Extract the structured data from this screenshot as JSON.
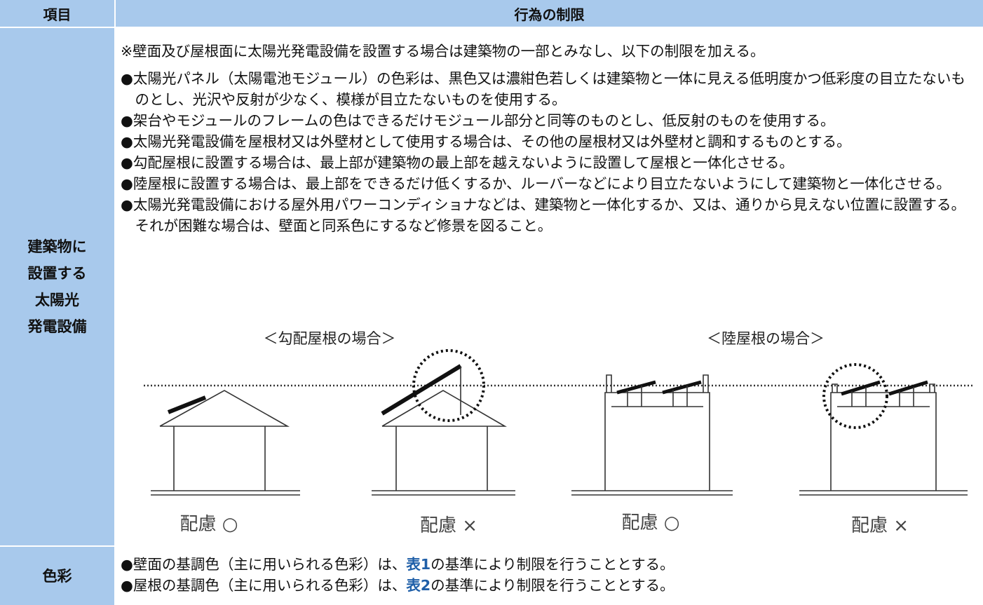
{
  "header": {
    "item": "項目",
    "restriction": "行為の制限"
  },
  "rows": [
    {
      "label_lines": [
        "建築物に",
        "設置する",
        "太陽光",
        "発電設備"
      ],
      "note": "※壁面及び屋根面に太陽光発電設備を設置する場合は建築物の一部とみなし、以下の制限を加える。",
      "bullets": [
        "●太陽光パネル（太陽電池モジュール）の色彩は、黒色又は濃紺色若しくは建築物と一体に見える低明度かつ低彩度の目立たないものとし、光沢や反射が少なく、模様が目立たないものを使用する。",
        "●架台やモジュールのフレームの色はできるだけモジュール部分と同等のものとし、低反射のものを使用する。",
        "●太陽光発電設備を屋根材又は外壁材として使用する場合は、その他の屋根材又は外壁材と調和するものとする。",
        "●勾配屋根に設置する場合は、最上部が建築物の最上部を越えないように設置して屋根と一体化させる。",
        "●陸屋根に設置する場合は、最上部をできるだけ低くするか、ルーバーなどにより目立たないようにして建築物と一体化させる。",
        "●太陽光発電設備における屋外用パワーコンディショナなどは、建築物と一体化するか、又は、通りから見えない位置に設置する。それが困難な場合は、壁面と同系色にするなど修景を図ること。"
      ],
      "diagrams": {
        "sloped_title": "＜勾配屋根の場合＞",
        "flat_title": "＜陸屋根の場合＞",
        "captions": [
          "配慮 ○",
          "配慮 ×",
          "配慮 ○",
          "配慮 ×"
        ]
      }
    },
    {
      "label": "色彩",
      "bullets": [
        {
          "before": "●壁面の基調色（主に用いられる色彩）は、",
          "link": "表1",
          "after": "の基準により制限を行うこととする。"
        },
        {
          "before": "●屋根の基調色（主に用いられる色彩）は、",
          "link": "表2",
          "after": "の基準により制限を行うこととする。"
        }
      ]
    }
  ]
}
